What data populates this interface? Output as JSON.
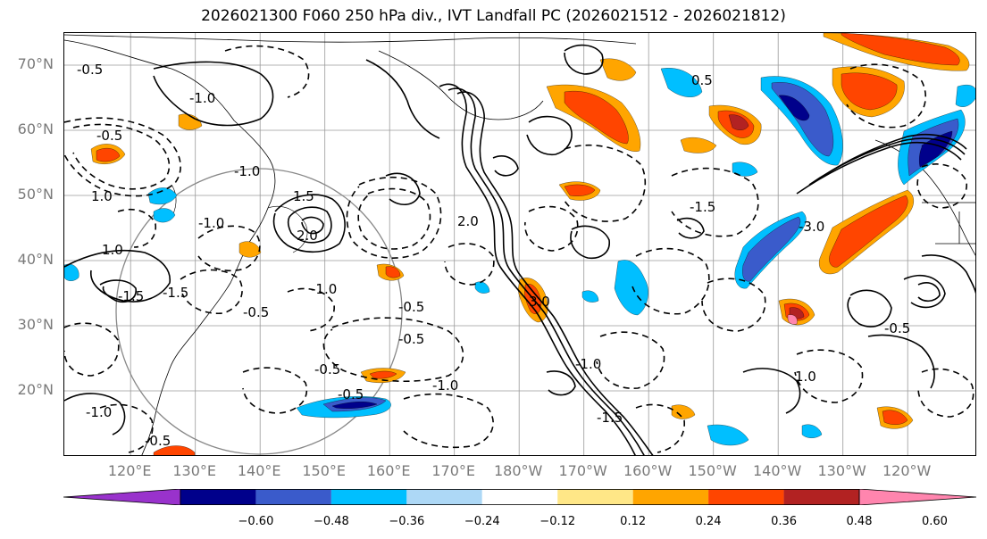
{
  "title": "2026021300 F060 250 hPa div., IVT Landfall PC (2026021512 - 2026021812)",
  "lat_labels": [
    "70°N",
    "60°N",
    "50°N",
    "40°N",
    "30°N",
    "20°N"
  ],
  "lon_labels": [
    "120°E",
    "130°E",
    "140°E",
    "150°E",
    "160°E",
    "170°E",
    "180°W",
    "170°W",
    "160°W",
    "150°W",
    "140°W",
    "130°W",
    "120°W"
  ],
  "contour_labels": [
    "-0.5",
    "-1.0",
    "-0.5",
    "-1.0",
    "1.0",
    "1.5",
    "-1.0",
    "2.0",
    "-1.0",
    "-1.5",
    "-0.5",
    "-0.5",
    "-0.5",
    "3.0",
    "-1.5",
    "-1.0",
    "-0.5",
    "-0.5",
    "-1.0",
    "1.0",
    "-1.5",
    "2.0",
    "-0.5",
    "-1.0",
    "-1.5",
    "0.5",
    "-3.0",
    "1.0",
    "-0.5"
  ],
  "colorbar": {
    "colors": [
      "#9932CC",
      "#00008B",
      "#3A5BCB",
      "#00BFFF",
      "#ADD8F6",
      "#FFFFFF",
      "#FFE787",
      "#FFA500",
      "#FF4500",
      "#B22222",
      "#FF85AE"
    ],
    "ticks": [
      "−0.60",
      "−0.48",
      "−0.36",
      "−0.24",
      "−0.12",
      "0.12",
      "0.24",
      "0.36",
      "0.48",
      "0.60"
    ]
  }
}
